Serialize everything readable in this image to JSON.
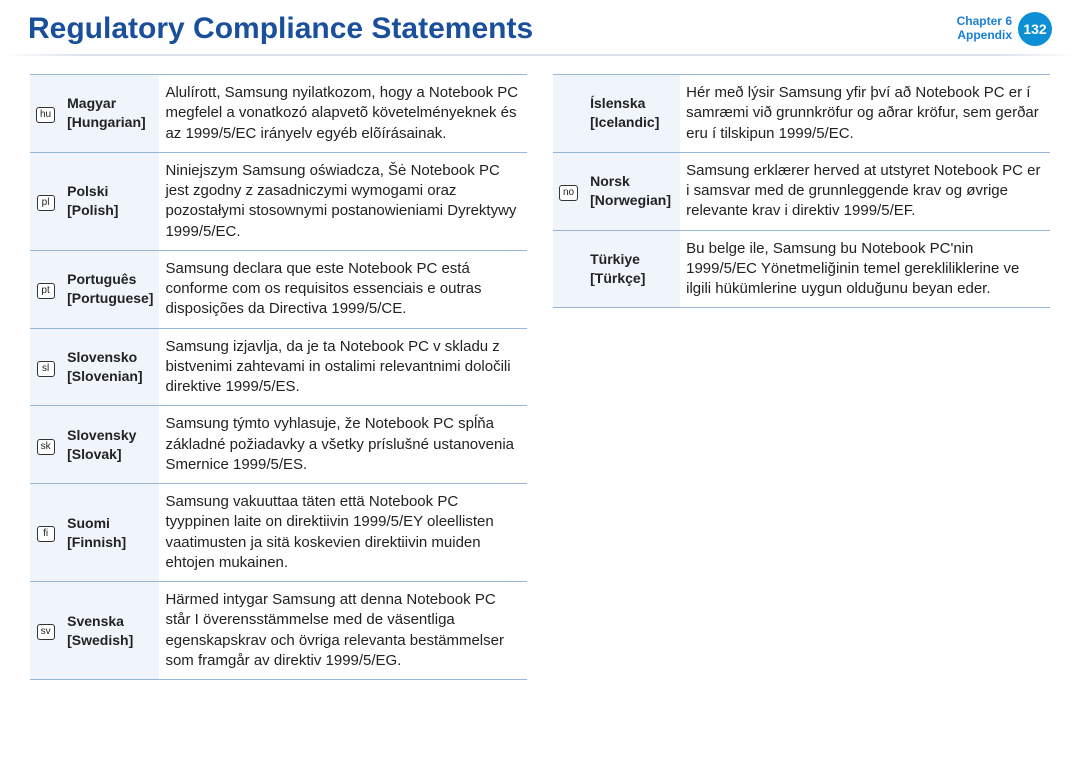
{
  "header": {
    "title": "Regulatory Compliance Statements",
    "chapter_line1": "Chapter 6",
    "chapter_line2": "Appendix",
    "page_number": "132"
  },
  "colors": {
    "title_color": "#1a4f9c",
    "chapter_color": "#1a7fd6",
    "badge_bg": "#0d8fd6",
    "badge_text": "#ffffff",
    "row_border": "#98b6d9",
    "shaded_bg": "#eff5fb"
  },
  "left_rows": [
    {
      "icon": "hu",
      "native": "Magyar",
      "english": "[Hungarian]",
      "statement": "Alulírott, Samsung nyilatkozom, hogy a Notebook PC megfelel a vonatkozó alapvetõ követelményeknek és az 1999/5/EC irányelv egyéb elõírásainak."
    },
    {
      "icon": "pl",
      "native": "Polski",
      "english": "[Polish]",
      "statement": "Niniejszym Samsung oświadcza, Šė Notebook PC jest zgodny z zasadniczymi wymogami oraz pozostałymi stosownymi postanowieniami Dyrektywy 1999/5/EC."
    },
    {
      "icon": "pt",
      "native": "Português",
      "english": "[Portuguese]",
      "statement": "Samsung declara que este Notebook PC está conforme com os requisitos essenciais e outras disposições da Directiva 1999/5/CE."
    },
    {
      "icon": "sl",
      "native": "Slovensko",
      "english": "[Slovenian]",
      "statement": "Samsung izjavlja, da je ta Notebook PC v skladu z bistvenimi zahtevami in ostalimi relevantnimi določili direktive 1999/5/ES."
    },
    {
      "icon": "sk",
      "native": "Slovensky",
      "english": "[Slovak]",
      "statement": "Samsung týmto vyhlasuje, že Notebook PC spĺňa základné požiadavky a všetky príslušné ustanovenia Smernice 1999/5/ES."
    },
    {
      "icon": "fi",
      "native": "Suomi",
      "english": "[Finnish]",
      "statement": "Samsung vakuuttaa täten että Notebook PC tyyppinen laite on direktiivin 1999/5/EY oleellisten vaatimusten ja sitä koskevien direktiivin muiden ehtojen mukainen."
    },
    {
      "icon": "sv",
      "native": "Svenska",
      "english": "[Swedish]",
      "statement": "Härmed intygar Samsung att denna Notebook PC står I överensstämmelse med de väsentliga egenskapskrav och övriga relevanta bestämmelser som framgår av direktiv 1999/5/EG."
    }
  ],
  "right_rows": [
    {
      "icon": "",
      "native": "Íslenska",
      "english": "[Icelandic]",
      "statement": "Hér með lýsir Samsung yfir því að Notebook PC er í samræmi við grunnkröfur og aðrar kröfur, sem gerðar eru í tilskipun 1999/5/EC."
    },
    {
      "icon": "no",
      "native": "Norsk",
      "english": "[Norwegian]",
      "statement": "Samsung erklærer herved at utstyret Notebook PC er i samsvar med de grunnleggende krav og øvrige relevante krav i direktiv 1999/5/EF."
    },
    {
      "icon": "",
      "native": "Türkiye",
      "english": "[Türkçe]",
      "statement": "Bu belge ile, Samsung bu Notebook PC'nin 1999/5/EC Yönetmeliğinin temel gerekliliklerine ve ilgili hükümlerine uygun olduğunu beyan eder."
    }
  ]
}
